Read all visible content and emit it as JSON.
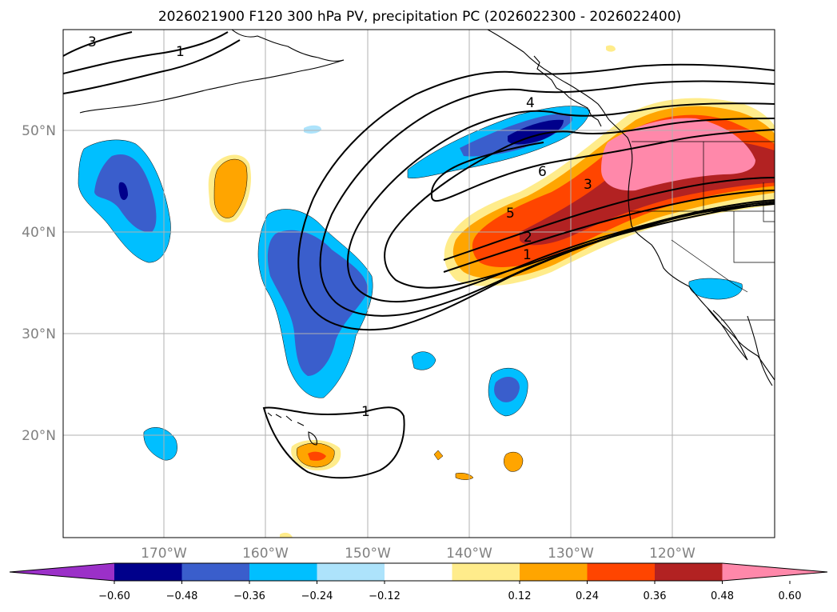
{
  "title": "2026021900 F120 300 hPa PV, precipitation PC (2026022300 - 2026022400)",
  "latitude_labels": [
    "50°N",
    "40°N",
    "30°N",
    "20°N"
  ],
  "longitude_labels": [
    "170°W",
    "160°W",
    "150°W",
    "140°W",
    "130°W",
    "120°W"
  ],
  "pv_contour_labels": [
    "3",
    "1",
    "4",
    "6",
    "3",
    "5",
    "2",
    "1",
    "1"
  ],
  "colorbar": {
    "ticks": [
      "−0.60",
      "−0.48",
      "−0.36",
      "−0.24",
      "−0.12",
      "0.12",
      "0.24",
      "0.36",
      "0.48",
      "0.60"
    ],
    "colors": [
      "#9b30c8",
      "#00008b",
      "#3a5ecc",
      "#00bfff",
      "#ade3fb",
      "#ffffff",
      "#ffec8b",
      "#ffa500",
      "#ff4500",
      "#b22222",
      "#ff88aa"
    ]
  },
  "shading_colors": {
    "neg_ext": "#00008b",
    "neg_strong": "#3a5ecc",
    "neg_mid": "#00bfff",
    "neg_weak": "#ade3fb",
    "pos_weak": "#ffec8b",
    "pos_mid": "#ffa500",
    "pos_strong": "#ff4500",
    "pos_vstrong": "#b22222",
    "pos_ext": "#ff88aa"
  }
}
